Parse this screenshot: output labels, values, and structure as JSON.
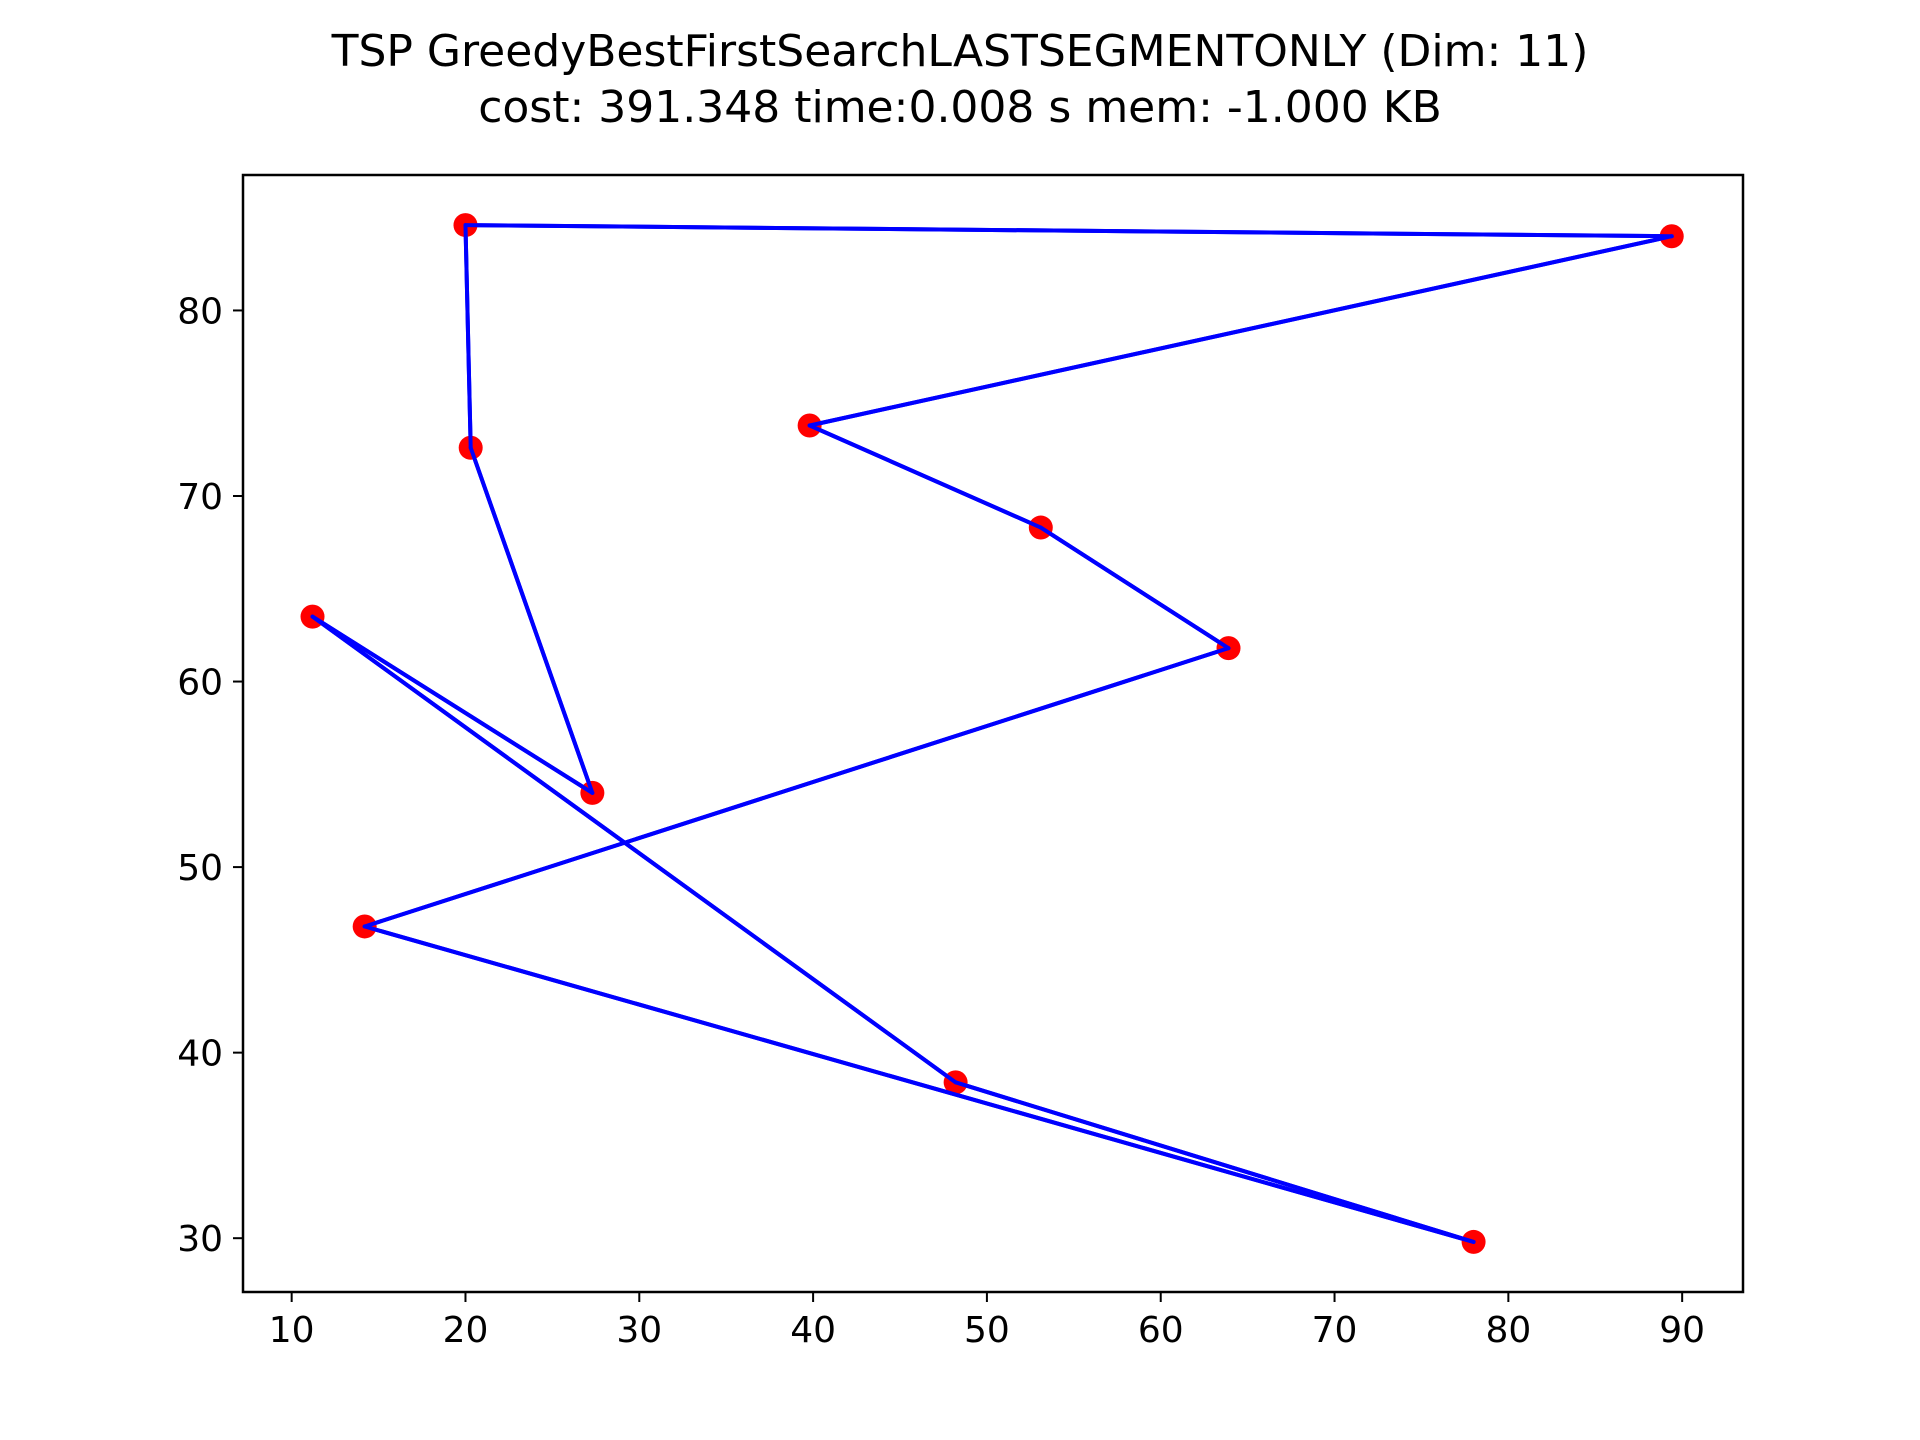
{
  "chart_data": {
    "type": "line",
    "title": "TSP GreedyBestFirstSearchLASTSEGMENTONLY (Dim: 11)",
    "subtitle": "cost: 391.348   time:0.008 s   mem: -1.000 KB",
    "xlim": [
      7.2,
      93.5
    ],
    "ylim": [
      27.1,
      87.3
    ],
    "xticks": [
      10,
      20,
      30,
      40,
      50,
      60,
      70,
      80,
      90
    ],
    "yticks": [
      30,
      40,
      50,
      60,
      70,
      80
    ],
    "grid": false,
    "line_color": "#0000ff",
    "point_color": "#ff0000",
    "points": [
      {
        "x": 20.0,
        "y": 84.6
      },
      {
        "x": 89.4,
        "y": 84.0
      },
      {
        "x": 39.8,
        "y": 73.8
      },
      {
        "x": 53.1,
        "y": 68.3
      },
      {
        "x": 63.9,
        "y": 61.8
      },
      {
        "x": 14.2,
        "y": 46.8
      },
      {
        "x": 78.0,
        "y": 29.8
      },
      {
        "x": 48.2,
        "y": 38.4
      },
      {
        "x": 11.2,
        "y": 63.5
      },
      {
        "x": 27.3,
        "y": 54.0
      },
      {
        "x": 20.3,
        "y": 72.6
      }
    ],
    "tour": [
      0,
      1,
      2,
      3,
      4,
      5,
      6,
      7,
      8,
      9,
      10,
      0
    ]
  }
}
